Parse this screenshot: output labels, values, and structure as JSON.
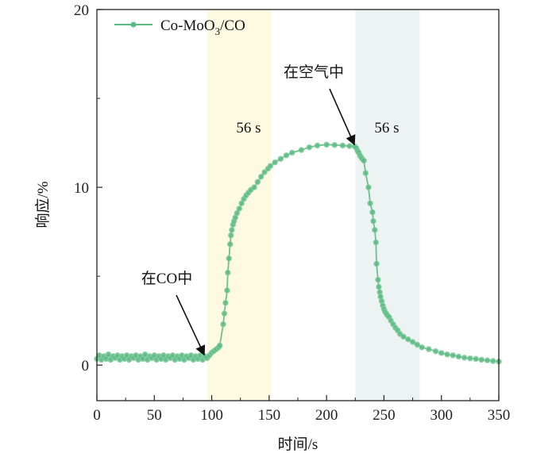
{
  "chart_data": {
    "type": "line",
    "xlabel": "时间/s",
    "ylabel": "响应/%",
    "xlim": [
      0,
      350
    ],
    "ylim": [
      -2,
      20
    ],
    "xticks": [
      0,
      50,
      100,
      150,
      200,
      250,
      300,
      350
    ],
    "yticks": [
      0,
      10,
      20
    ],
    "grid": false,
    "legend": {
      "placement": "top-left",
      "entries": [
        {
          "name": "Co-MoO",
          "sub": "3",
          "suffix": "/CO"
        }
      ]
    },
    "series_color": "#5cba84",
    "bands": [
      {
        "x0": 96,
        "x1": 152,
        "color": "#fdfae1",
        "label": "56 s"
      },
      {
        "x0": 225,
        "x1": 281,
        "color": "#edf3f2",
        "label": "56 s"
      }
    ],
    "annotations": [
      {
        "text": "在CO中",
        "point": [
          96,
          0.4
        ]
      },
      {
        "text": "在空气中",
        "point": [
          225,
          12.3
        ]
      }
    ],
    "series": [
      {
        "name": "Co-MoO3/CO",
        "points": [
          [
            0,
            0.35
          ],
          [
            2,
            0.55
          ],
          [
            4,
            0.3
          ],
          [
            6,
            0.5
          ],
          [
            8,
            0.35
          ],
          [
            10,
            0.6
          ],
          [
            12,
            0.3
          ],
          [
            14,
            0.5
          ],
          [
            16,
            0.4
          ],
          [
            18,
            0.55
          ],
          [
            20,
            0.3
          ],
          [
            22,
            0.5
          ],
          [
            24,
            0.35
          ],
          [
            26,
            0.55
          ],
          [
            28,
            0.3
          ],
          [
            30,
            0.5
          ],
          [
            32,
            0.4
          ],
          [
            34,
            0.55
          ],
          [
            36,
            0.3
          ],
          [
            38,
            0.5
          ],
          [
            40,
            0.35
          ],
          [
            42,
            0.6
          ],
          [
            44,
            0.3
          ],
          [
            46,
            0.5
          ],
          [
            48,
            0.4
          ],
          [
            50,
            0.55
          ],
          [
            52,
            0.3
          ],
          [
            54,
            0.5
          ],
          [
            56,
            0.35
          ],
          [
            58,
            0.55
          ],
          [
            60,
            0.3
          ],
          [
            62,
            0.5
          ],
          [
            64,
            0.4
          ],
          [
            66,
            0.55
          ],
          [
            68,
            0.3
          ],
          [
            70,
            0.5
          ],
          [
            72,
            0.35
          ],
          [
            74,
            0.55
          ],
          [
            76,
            0.3
          ],
          [
            78,
            0.5
          ],
          [
            80,
            0.4
          ],
          [
            82,
            0.55
          ],
          [
            84,
            0.3
          ],
          [
            86,
            0.5
          ],
          [
            88,
            0.35
          ],
          [
            90,
            0.55
          ],
          [
            92,
            0.3
          ],
          [
            94,
            0.5
          ],
          [
            96,
            0.4
          ],
          [
            98,
            0.55
          ],
          [
            100,
            0.7
          ],
          [
            102,
            0.8
          ],
          [
            104,
            0.9
          ],
          [
            106,
            1.0
          ],
          [
            107,
            1.1
          ],
          [
            110,
            2.3
          ],
          [
            111,
            2.9
          ],
          [
            112,
            3.5
          ],
          [
            113.4,
            4.2
          ],
          [
            114,
            5.2
          ],
          [
            115,
            6.0
          ],
          [
            116,
            6.8
          ],
          [
            116.7,
            7.3
          ],
          [
            117.5,
            7.6
          ],
          [
            118.5,
            7.9
          ],
          [
            119.5,
            8.1
          ],
          [
            120.5,
            8.3
          ],
          [
            122,
            8.55
          ],
          [
            124,
            8.8
          ],
          [
            126,
            9.1
          ],
          [
            128,
            9.35
          ],
          [
            130,
            9.55
          ],
          [
            132,
            9.7
          ],
          [
            134,
            9.85
          ],
          [
            137,
            10.0
          ],
          [
            140,
            10.3
          ],
          [
            143,
            10.6
          ],
          [
            146,
            10.85
          ],
          [
            149,
            11.05
          ],
          [
            151,
            11.2
          ],
          [
            155,
            11.4
          ],
          [
            160,
            11.6
          ],
          [
            165,
            11.8
          ],
          [
            170,
            11.95
          ],
          [
            178,
            12.1
          ],
          [
            185,
            12.25
          ],
          [
            192,
            12.35
          ],
          [
            200,
            12.4
          ],
          [
            207,
            12.38
          ],
          [
            214,
            12.35
          ],
          [
            220,
            12.32
          ],
          [
            224.5,
            12.3
          ],
          [
            226,
            12.2
          ],
          [
            227,
            12.05
          ],
          [
            228,
            11.95
          ],
          [
            229,
            11.8
          ],
          [
            230,
            11.7
          ],
          [
            231,
            11.6
          ],
          [
            232.5,
            11.5
          ],
          [
            234,
            10.8
          ],
          [
            236.5,
            10.0
          ],
          [
            238,
            9.1
          ],
          [
            240,
            8.6
          ],
          [
            240.7,
            8.1
          ],
          [
            242,
            7.6
          ],
          [
            243,
            6.9
          ],
          [
            243.5,
            5.7
          ],
          [
            244.8,
            4.8
          ],
          [
            245.5,
            4.4
          ],
          [
            246.3,
            4.1
          ],
          [
            247,
            3.85
          ],
          [
            248,
            3.6
          ],
          [
            249,
            3.35
          ],
          [
            250,
            3.15
          ],
          [
            251,
            3.0
          ],
          [
            252,
            2.9
          ],
          [
            253,
            2.8
          ],
          [
            254.5,
            2.7
          ],
          [
            256,
            2.5
          ],
          [
            258,
            2.3
          ],
          [
            260,
            2.1
          ],
          [
            262,
            1.95
          ],
          [
            264,
            1.75
          ],
          [
            267,
            1.6
          ],
          [
            271,
            1.45
          ],
          [
            275,
            1.3
          ],
          [
            279,
            1.15
          ],
          [
            283,
            1.0
          ],
          [
            289,
            0.9
          ],
          [
            295,
            0.78
          ],
          [
            300,
            0.68
          ],
          [
            305,
            0.6
          ],
          [
            310,
            0.55
          ],
          [
            315,
            0.48
          ],
          [
            320,
            0.42
          ],
          [
            325,
            0.38
          ],
          [
            330,
            0.35
          ],
          [
            335,
            0.3
          ],
          [
            340,
            0.27
          ],
          [
            345,
            0.23
          ],
          [
            350,
            0.2
          ]
        ]
      }
    ]
  }
}
